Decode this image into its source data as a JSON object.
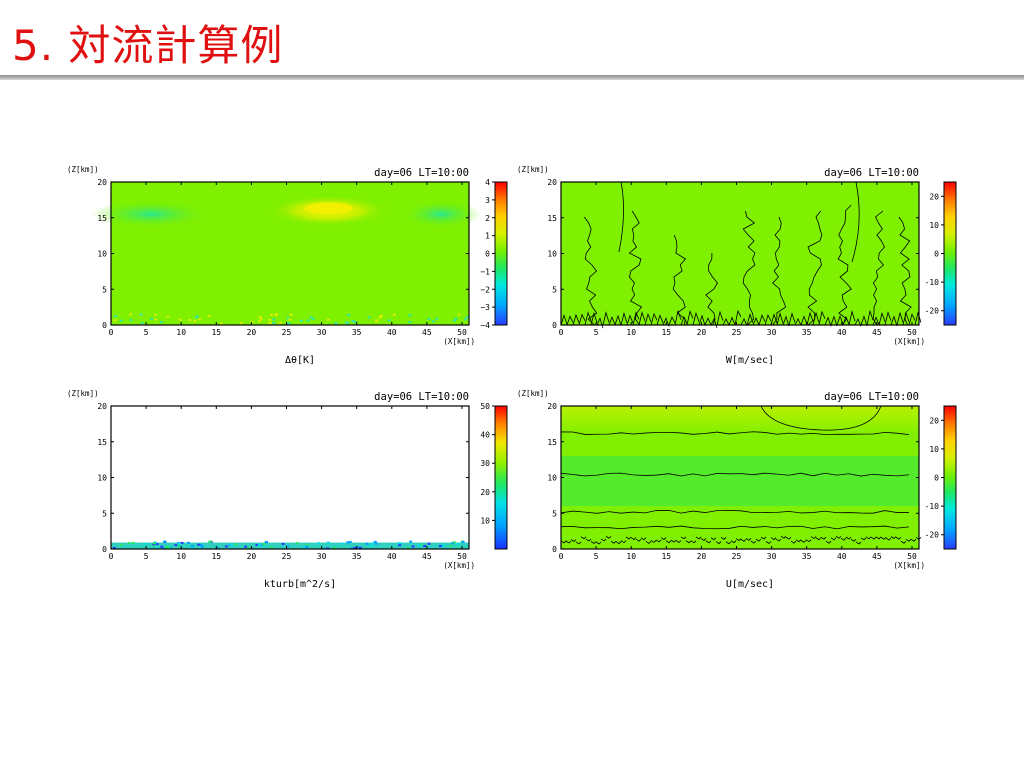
{
  "slide": {
    "title": "5. 対流計算例"
  },
  "chart_data": [
    {
      "type": "heatmap",
      "timestamp": "day=06 LT=10:00",
      "ylabel": "(Z[km])",
      "xlabel": "(X[km])",
      "caption": "Δθ[K]",
      "xlim": [
        0,
        51
      ],
      "ylim": [
        0,
        20
      ],
      "xticks": [
        "0",
        "5",
        "10",
        "15",
        "20",
        "25",
        "30",
        "35",
        "40",
        "45",
        "50"
      ],
      "yticks": [
        "0",
        "5",
        "10",
        "15",
        "20"
      ],
      "colorbar": {
        "min": -4,
        "max": 4,
        "ticks": [
          "4",
          "3",
          "2",
          "1",
          "0",
          "−1",
          "−2",
          "−3",
          "−4"
        ]
      },
      "contours": false
    },
    {
      "type": "heatmap",
      "timestamp": "day=06 LT=10:00",
      "ylabel": "(Z[km])",
      "xlabel": "(X[km])",
      "caption": "W[m/sec]",
      "xlim": [
        0,
        51
      ],
      "ylim": [
        0,
        20
      ],
      "xticks": [
        "0",
        "5",
        "10",
        "15",
        "20",
        "25",
        "30",
        "35",
        "40",
        "45",
        "50"
      ],
      "yticks": [
        "0",
        "5",
        "10",
        "15",
        "20"
      ],
      "colorbar": {
        "min": -25,
        "max": 25,
        "ticks": [
          "20",
          "10",
          "0",
          "-10",
          "-20"
        ]
      },
      "contours": true
    },
    {
      "type": "heatmap",
      "timestamp": "day=06 LT=10:00",
      "ylabel": "(Z[km])",
      "xlabel": "(X[km])",
      "caption": "kturb[m^2/s]",
      "xlim": [
        0,
        51
      ],
      "ylim": [
        0,
        20
      ],
      "xticks": [
        "0",
        "5",
        "10",
        "15",
        "20",
        "25",
        "30",
        "35",
        "40",
        "45",
        "50"
      ],
      "yticks": [
        "0",
        "5",
        "10",
        "15",
        "20"
      ],
      "colorbar": {
        "min": 0,
        "max": 50,
        "ticks": [
          "50",
          "40",
          "30",
          "20",
          "10"
        ]
      },
      "contours": false
    },
    {
      "type": "heatmap",
      "timestamp": "day=06 LT=10:00",
      "ylabel": "(Z[km])",
      "xlabel": "(X[km])",
      "caption": "U[m/sec]",
      "xlim": [
        0,
        51
      ],
      "ylim": [
        0,
        20
      ],
      "xticks": [
        "0",
        "5",
        "10",
        "15",
        "20",
        "25",
        "30",
        "35",
        "40",
        "45",
        "50"
      ],
      "yticks": [
        "0",
        "5",
        "10",
        "15",
        "20"
      ],
      "colorbar": {
        "min": -25,
        "max": 25,
        "ticks": [
          "20",
          "10",
          "0",
          "-10",
          "-20"
        ]
      },
      "contours": true
    }
  ]
}
